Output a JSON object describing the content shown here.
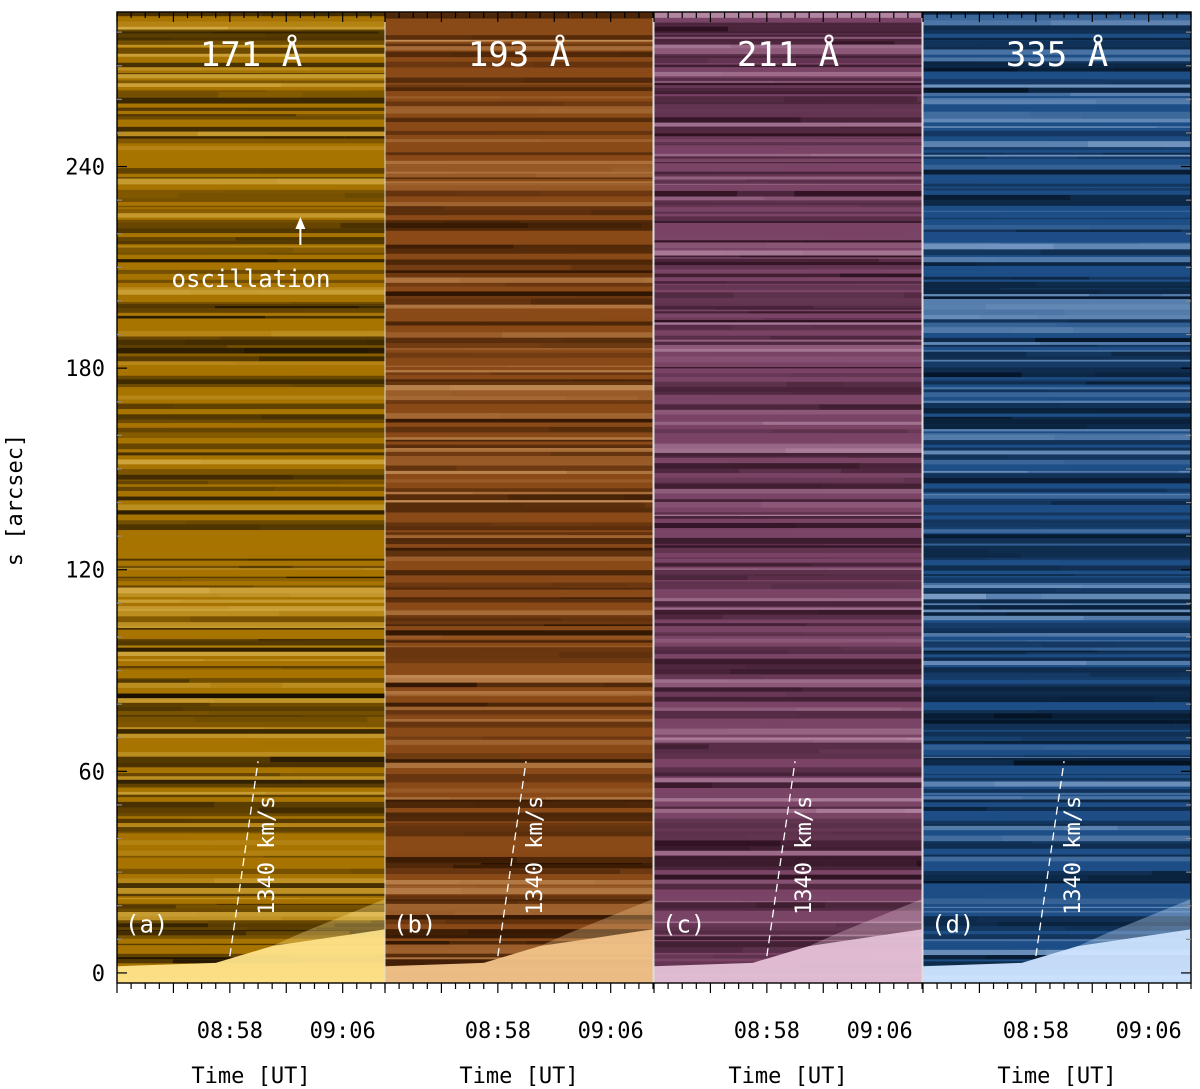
{
  "chart_data": {
    "type": "heatmap",
    "description_kind": "time-distance stack plots",
    "y_axis": {
      "label": "s [arcsec]",
      "ticks": [
        0,
        60,
        120,
        180,
        240
      ],
      "range": [
        -3,
        286
      ]
    },
    "x_axis": {
      "label": "Time [UT]",
      "tick_labels": [
        "08:58",
        "09:06"
      ],
      "range_minutes": [
        "08:50",
        "09:09"
      ]
    },
    "panels": [
      {
        "id": "a",
        "panel_label": "(a)",
        "title": "171 Å",
        "colors": {
          "dark": "#1a1000",
          "mid": "#a87400",
          "bright": "#ffe48a"
        }
      },
      {
        "id": "b",
        "panel_label": "(b)",
        "title": "193 Å",
        "colors": {
          "dark": "#2a1200",
          "mid": "#8a4a18",
          "bright": "#f2c48a"
        }
      },
      {
        "id": "c",
        "panel_label": "(c)",
        "title": "211 Å",
        "colors": {
          "dark": "#2a0f1e",
          "mid": "#7a4466",
          "bright": "#e6c2d8"
        }
      },
      {
        "id": "d",
        "panel_label": "(d)",
        "title": "335 Å",
        "colors": {
          "dark": "#02101e",
          "mid": "#1e4e86",
          "bright": "#cfe4ff"
        }
      }
    ],
    "annotations": {
      "speed_label": "1340 km/s",
      "speed_line": {
        "t_start": "08:58",
        "s_start": 5,
        "t_end": "09:00",
        "s_end": 63
      },
      "oscillation_label": "oscillation",
      "oscillation_arrow_target": {
        "panel": "a",
        "t": "09:03",
        "s": 225
      }
    }
  }
}
